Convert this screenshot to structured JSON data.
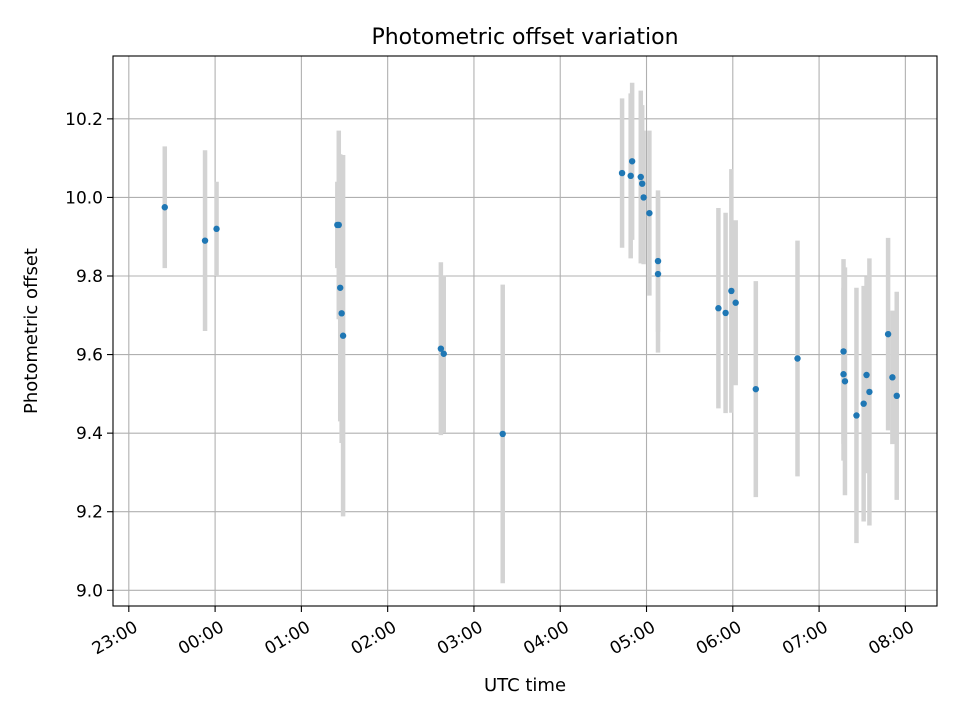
{
  "chart_data": {
    "type": "scatter",
    "title": "Photometric offset variation",
    "xlabel": "UTC time",
    "ylabel": "Photometric offset",
    "x_unit": "UTC time (HH:MM, night starting 23:00 on day 1)",
    "xlim": [
      "22:49",
      "08:22"
    ],
    "ylim": [
      8.96,
      10.36
    ],
    "x_ticks": [
      "23:00",
      "00:00",
      "01:00",
      "02:00",
      "03:00",
      "04:00",
      "05:00",
      "06:00",
      "07:00",
      "08:00"
    ],
    "y_ticks": [
      "9.0",
      "9.2",
      "9.4",
      "9.6",
      "9.8",
      "10.0",
      "10.2"
    ],
    "grid": true,
    "point_color": "#1f77b4",
    "errorbar_color": "#d3d3d3",
    "series": [
      {
        "points": [
          {
            "t": "23:25",
            "y": 9.975,
            "err": 0.155
          },
          {
            "t": "23:53",
            "y": 9.89,
            "err": 0.23
          },
          {
            "t": "00:01",
            "y": 9.92,
            "err": 0.12
          },
          {
            "t": "01:25",
            "y": 9.93,
            "err": 0.11
          },
          {
            "t": "01:26",
            "y": 9.93,
            "err": 0.24
          },
          {
            "t": "01:27",
            "y": 9.77,
            "err": 0.34
          },
          {
            "t": "01:28",
            "y": 9.705,
            "err": 0.33
          },
          {
            "t": "01:29",
            "y": 9.648,
            "err": 0.46
          },
          {
            "t": "02:37",
            "y": 9.615,
            "err": 0.22
          },
          {
            "t": "02:39",
            "y": 9.602,
            "err": 0.2
          },
          {
            "t": "03:20",
            "y": 9.398,
            "err": 0.38
          },
          {
            "t": "04:43",
            "y": 10.062,
            "err": 0.19
          },
          {
            "t": "04:49",
            "y": 10.055,
            "err": 0.21
          },
          {
            "t": "04:50",
            "y": 10.092,
            "err": 0.2
          },
          {
            "t": "04:56",
            "y": 10.052,
            "err": 0.22
          },
          {
            "t": "04:57",
            "y": 10.035,
            "err": 0.2
          },
          {
            "t": "04:58",
            "y": 10.0,
            "err": 0.17
          },
          {
            "t": "05:02",
            "y": 9.96,
            "err": 0.21
          },
          {
            "t": "05:08",
            "y": 9.838,
            "err": 0.18
          },
          {
            "t": "05:08",
            "y": 9.805,
            "err": 0.2
          },
          {
            "t": "05:50",
            "y": 9.718,
            "err": 0.255
          },
          {
            "t": "05:55",
            "y": 9.706,
            "err": 0.255
          },
          {
            "t": "05:59",
            "y": 9.762,
            "err": 0.31
          },
          {
            "t": "06:02",
            "y": 9.732,
            "err": 0.21
          },
          {
            "t": "06:16",
            "y": 9.512,
            "err": 0.275
          },
          {
            "t": "06:45",
            "y": 9.59,
            "err": 0.3
          },
          {
            "t": "07:17",
            "y": 9.608,
            "err": 0.235
          },
          {
            "t": "07:17",
            "y": 9.55,
            "err": 0.22
          },
          {
            "t": "07:18",
            "y": 9.532,
            "err": 0.29
          },
          {
            "t": "07:26",
            "y": 9.445,
            "err": 0.325
          },
          {
            "t": "07:31",
            "y": 9.475,
            "err": 0.3
          },
          {
            "t": "07:33",
            "y": 9.548,
            "err": 0.25
          },
          {
            "t": "07:35",
            "y": 9.505,
            "err": 0.34
          },
          {
            "t": "07:48",
            "y": 9.652,
            "err": 0.245
          },
          {
            "t": "07:51",
            "y": 9.542,
            "err": 0.17
          },
          {
            "t": "07:54",
            "y": 9.495,
            "err": 0.265
          }
        ]
      }
    ]
  }
}
